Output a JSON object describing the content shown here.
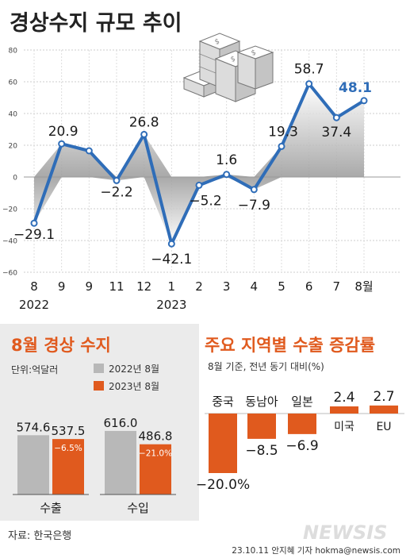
{
  "title": "경상수지 규모 추이",
  "colors": {
    "line": "#2f6db8",
    "highlight": "#2f6db8",
    "orange": "#e05a1e",
    "gray_bar": "#b8b8b8",
    "panel_bg": "#ebebeb"
  },
  "icon": "money-stack-icon",
  "chart_data": [
    {
      "type": "line",
      "title": "경상수지 규모 추이",
      "x": [
        "8",
        "9",
        "9",
        "11",
        "12",
        "1",
        "2",
        "3",
        "4",
        "5",
        "6",
        "7",
        "8월"
      ],
      "x_year_labels": [
        "2022",
        "2023"
      ],
      "series": [
        {
          "values": [
            -29.1,
            20.9,
            16.5,
            -2.2,
            26.8,
            -42.1,
            -5.2,
            1.6,
            -7.9,
            19.3,
            58.7,
            37.4,
            48.1
          ]
        }
      ],
      "data_labels": [
        "−29.1",
        "20.9",
        "",
        "−2.2",
        "26.8",
        "−42.1",
        "−5.2",
        "1.6",
        "−7.9",
        "19.3",
        "58.7",
        "37.4",
        "48.1"
      ],
      "yticks": [
        "80",
        "60",
        "40",
        "20",
        "0",
        "−20",
        "−40",
        "−60"
      ],
      "ylim": [
        -60,
        80
      ],
      "grid": true
    },
    {
      "type": "bar",
      "title": "8월 경상 수지",
      "unit": "단위:억달러",
      "categories": [
        "수출",
        "수입"
      ],
      "series": [
        {
          "name": "2022년 8월",
          "values": [
            574.6,
            616.0
          ],
          "labels": [
            "574.6",
            "616.0"
          ]
        },
        {
          "name": "2023년 8월",
          "values": [
            537.5,
            486.8
          ],
          "labels": [
            "537.5",
            "486.8"
          ],
          "change_labels": [
            "−6.5%",
            "−21.0%"
          ]
        }
      ]
    },
    {
      "type": "bar",
      "title": "주요 지역별 수출 증감률",
      "subtitle": "8월 기준, 전년 동기 대비(%)",
      "categories": [
        "중국",
        "동남아",
        "일본",
        "미국",
        "EU"
      ],
      "values": [
        -20.0,
        -8.5,
        -6.9,
        2.4,
        2.7
      ],
      "labels": [
        "−20.0%",
        "−8.5",
        "−6.9",
        "2.4",
        "2.7"
      ]
    }
  ],
  "footer": {
    "source": "자료: 한국은행",
    "credit": "23.10.11 안지혜 기자 hokma@newsis.com",
    "watermark": "NEWSIS"
  }
}
